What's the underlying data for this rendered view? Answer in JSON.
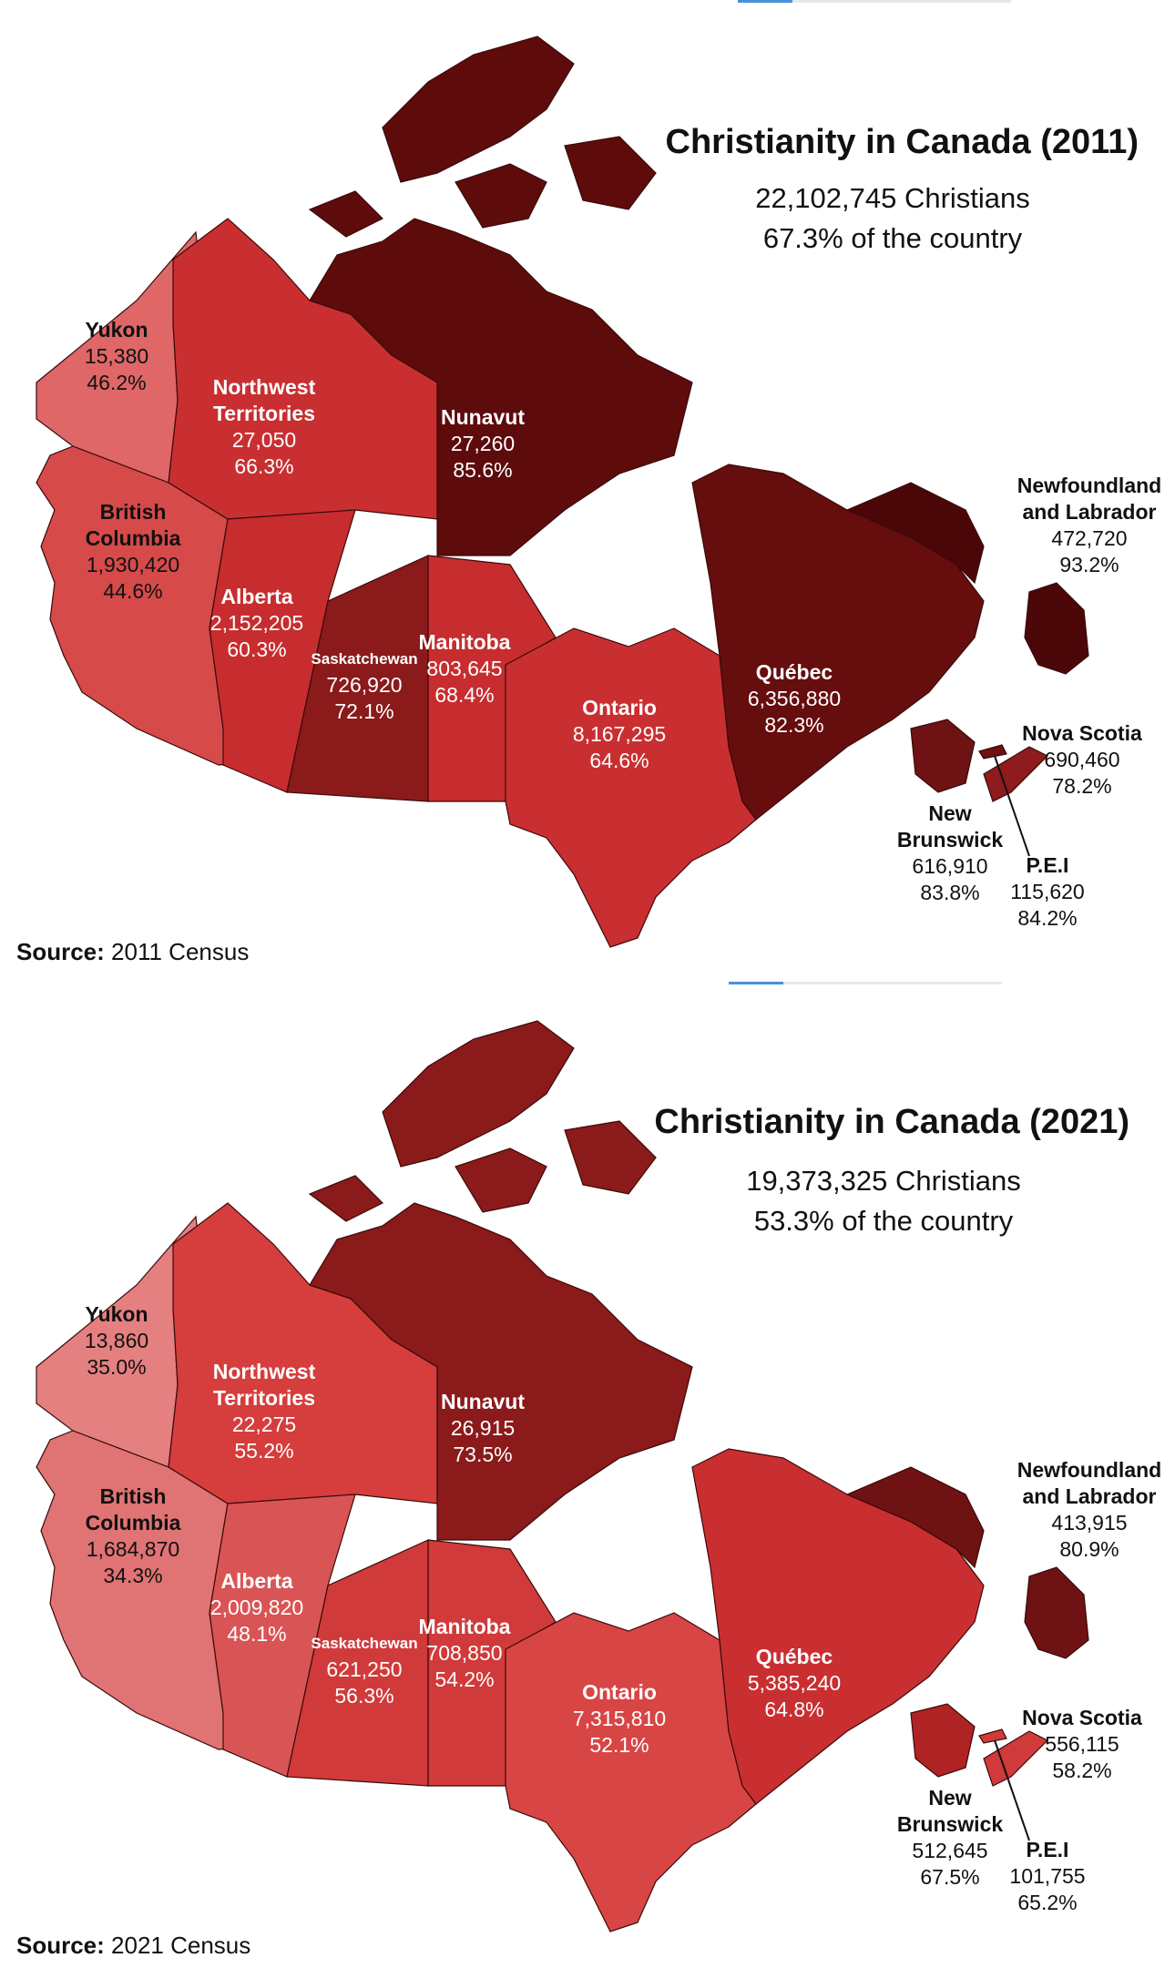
{
  "maps": [
    {
      "title": "Christianity in Canada (2011)",
      "total": "22,102,745 Christians",
      "share": "67.3% of the country",
      "source_label": "Source:",
      "source_value": "2011 Census",
      "colors": {
        "yukon": "#df6767",
        "bc": "#d64a4a",
        "nwt": "#c92f31",
        "alberta": "#c72d2e",
        "sask": "#8b1a1b",
        "manitoba": "#c72d2e",
        "ontario": "#c92f31",
        "nunavut": "#5e0b0c",
        "quebec": "#660d0e",
        "nl": "#4b0708",
        "nb": "#6e1213",
        "ns": "#8e1b1d",
        "pei": "#6e1213"
      },
      "provinces": [
        {
          "key": "yukon",
          "name": "Yukon",
          "count": "15,380",
          "pct": "46.2%"
        },
        {
          "key": "nwt",
          "name": "Northwest\nTerritories",
          "count": "27,050",
          "pct": "66.3%"
        },
        {
          "key": "nunavut",
          "name": "Nunavut",
          "count": "27,260",
          "pct": "85.6%"
        },
        {
          "key": "bc",
          "name": "British\nColumbia",
          "count": "1,930,420",
          "pct": "44.6%"
        },
        {
          "key": "alberta",
          "name": "Alberta",
          "count": "2,152,205",
          "pct": "60.3%"
        },
        {
          "key": "sask",
          "name": "Saskatchewan",
          "count": "726,920",
          "pct": "72.1%"
        },
        {
          "key": "manitoba",
          "name": "Manitoba",
          "count": "803,645",
          "pct": "68.4%"
        },
        {
          "key": "ontario",
          "name": "Ontario",
          "count": "8,167,295",
          "pct": "64.6%"
        },
        {
          "key": "quebec",
          "name": "Québec",
          "count": "6,356,880",
          "pct": "82.3%"
        },
        {
          "key": "nl",
          "name": "Newfoundland\nand Labrador",
          "count": "472,720",
          "pct": "93.2%"
        },
        {
          "key": "ns",
          "name": "Nova Scotia",
          "count": "690,460",
          "pct": "78.2%"
        },
        {
          "key": "nb",
          "name": "New\nBrunswick",
          "count": "616,910",
          "pct": "83.8%"
        },
        {
          "key": "pei",
          "name": "P.E.I",
          "count": "115,620",
          "pct": "84.2%"
        }
      ]
    },
    {
      "title": "Christianity in Canada (2021)",
      "total": "19,373,325 Christians",
      "share": "53.3% of the country",
      "source_label": "Source:",
      "source_value": "2021 Census",
      "colors": {
        "yukon": "#e58080",
        "bc": "#e07373",
        "nwt": "#d63d3d",
        "alberta": "#d95555",
        "sask": "#d13a3a",
        "manitoba": "#d13a3a",
        "ontario": "#d84545",
        "nunavut": "#8b1a1b",
        "quebec": "#c92f31",
        "nl": "#6e1213",
        "nb": "#b02324",
        "ns": "#d13a3a",
        "pei": "#d13a3a"
      },
      "provinces": [
        {
          "key": "yukon",
          "name": "Yukon",
          "count": "13,860",
          "pct": "35.0%"
        },
        {
          "key": "nwt",
          "name": "Northwest\nTerritories",
          "count": "22,275",
          "pct": "55.2%"
        },
        {
          "key": "nunavut",
          "name": "Nunavut",
          "count": "26,915",
          "pct": "73.5%"
        },
        {
          "key": "bc",
          "name": "British\nColumbia",
          "count": "1,684,870",
          "pct": "34.3%"
        },
        {
          "key": "alberta",
          "name": "Alberta",
          "count": "2,009,820",
          "pct": "48.1%"
        },
        {
          "key": "sask",
          "name": "Saskatchewan",
          "count": "621,250",
          "pct": "56.3%"
        },
        {
          "key": "manitoba",
          "name": "Manitoba",
          "count": "708,850",
          "pct": "54.2%"
        },
        {
          "key": "ontario",
          "name": "Ontario",
          "count": "7,315,810",
          "pct": "52.1%"
        },
        {
          "key": "quebec",
          "name": "Québec",
          "count": "5,385,240",
          "pct": "64.8%"
        },
        {
          "key": "nl",
          "name": "Newfoundland\nand Labrador",
          "count": "413,915",
          "pct": "80.9%"
        },
        {
          "key": "ns",
          "name": "Nova Scotia",
          "count": "556,115",
          "pct": "58.2%"
        },
        {
          "key": "nb",
          "name": "New\nBrunswick",
          "count": "512,645",
          "pct": "67.5%"
        },
        {
          "key": "pei",
          "name": "P.E.I",
          "count": "101,755",
          "pct": "65.2%"
        }
      ]
    }
  ]
}
